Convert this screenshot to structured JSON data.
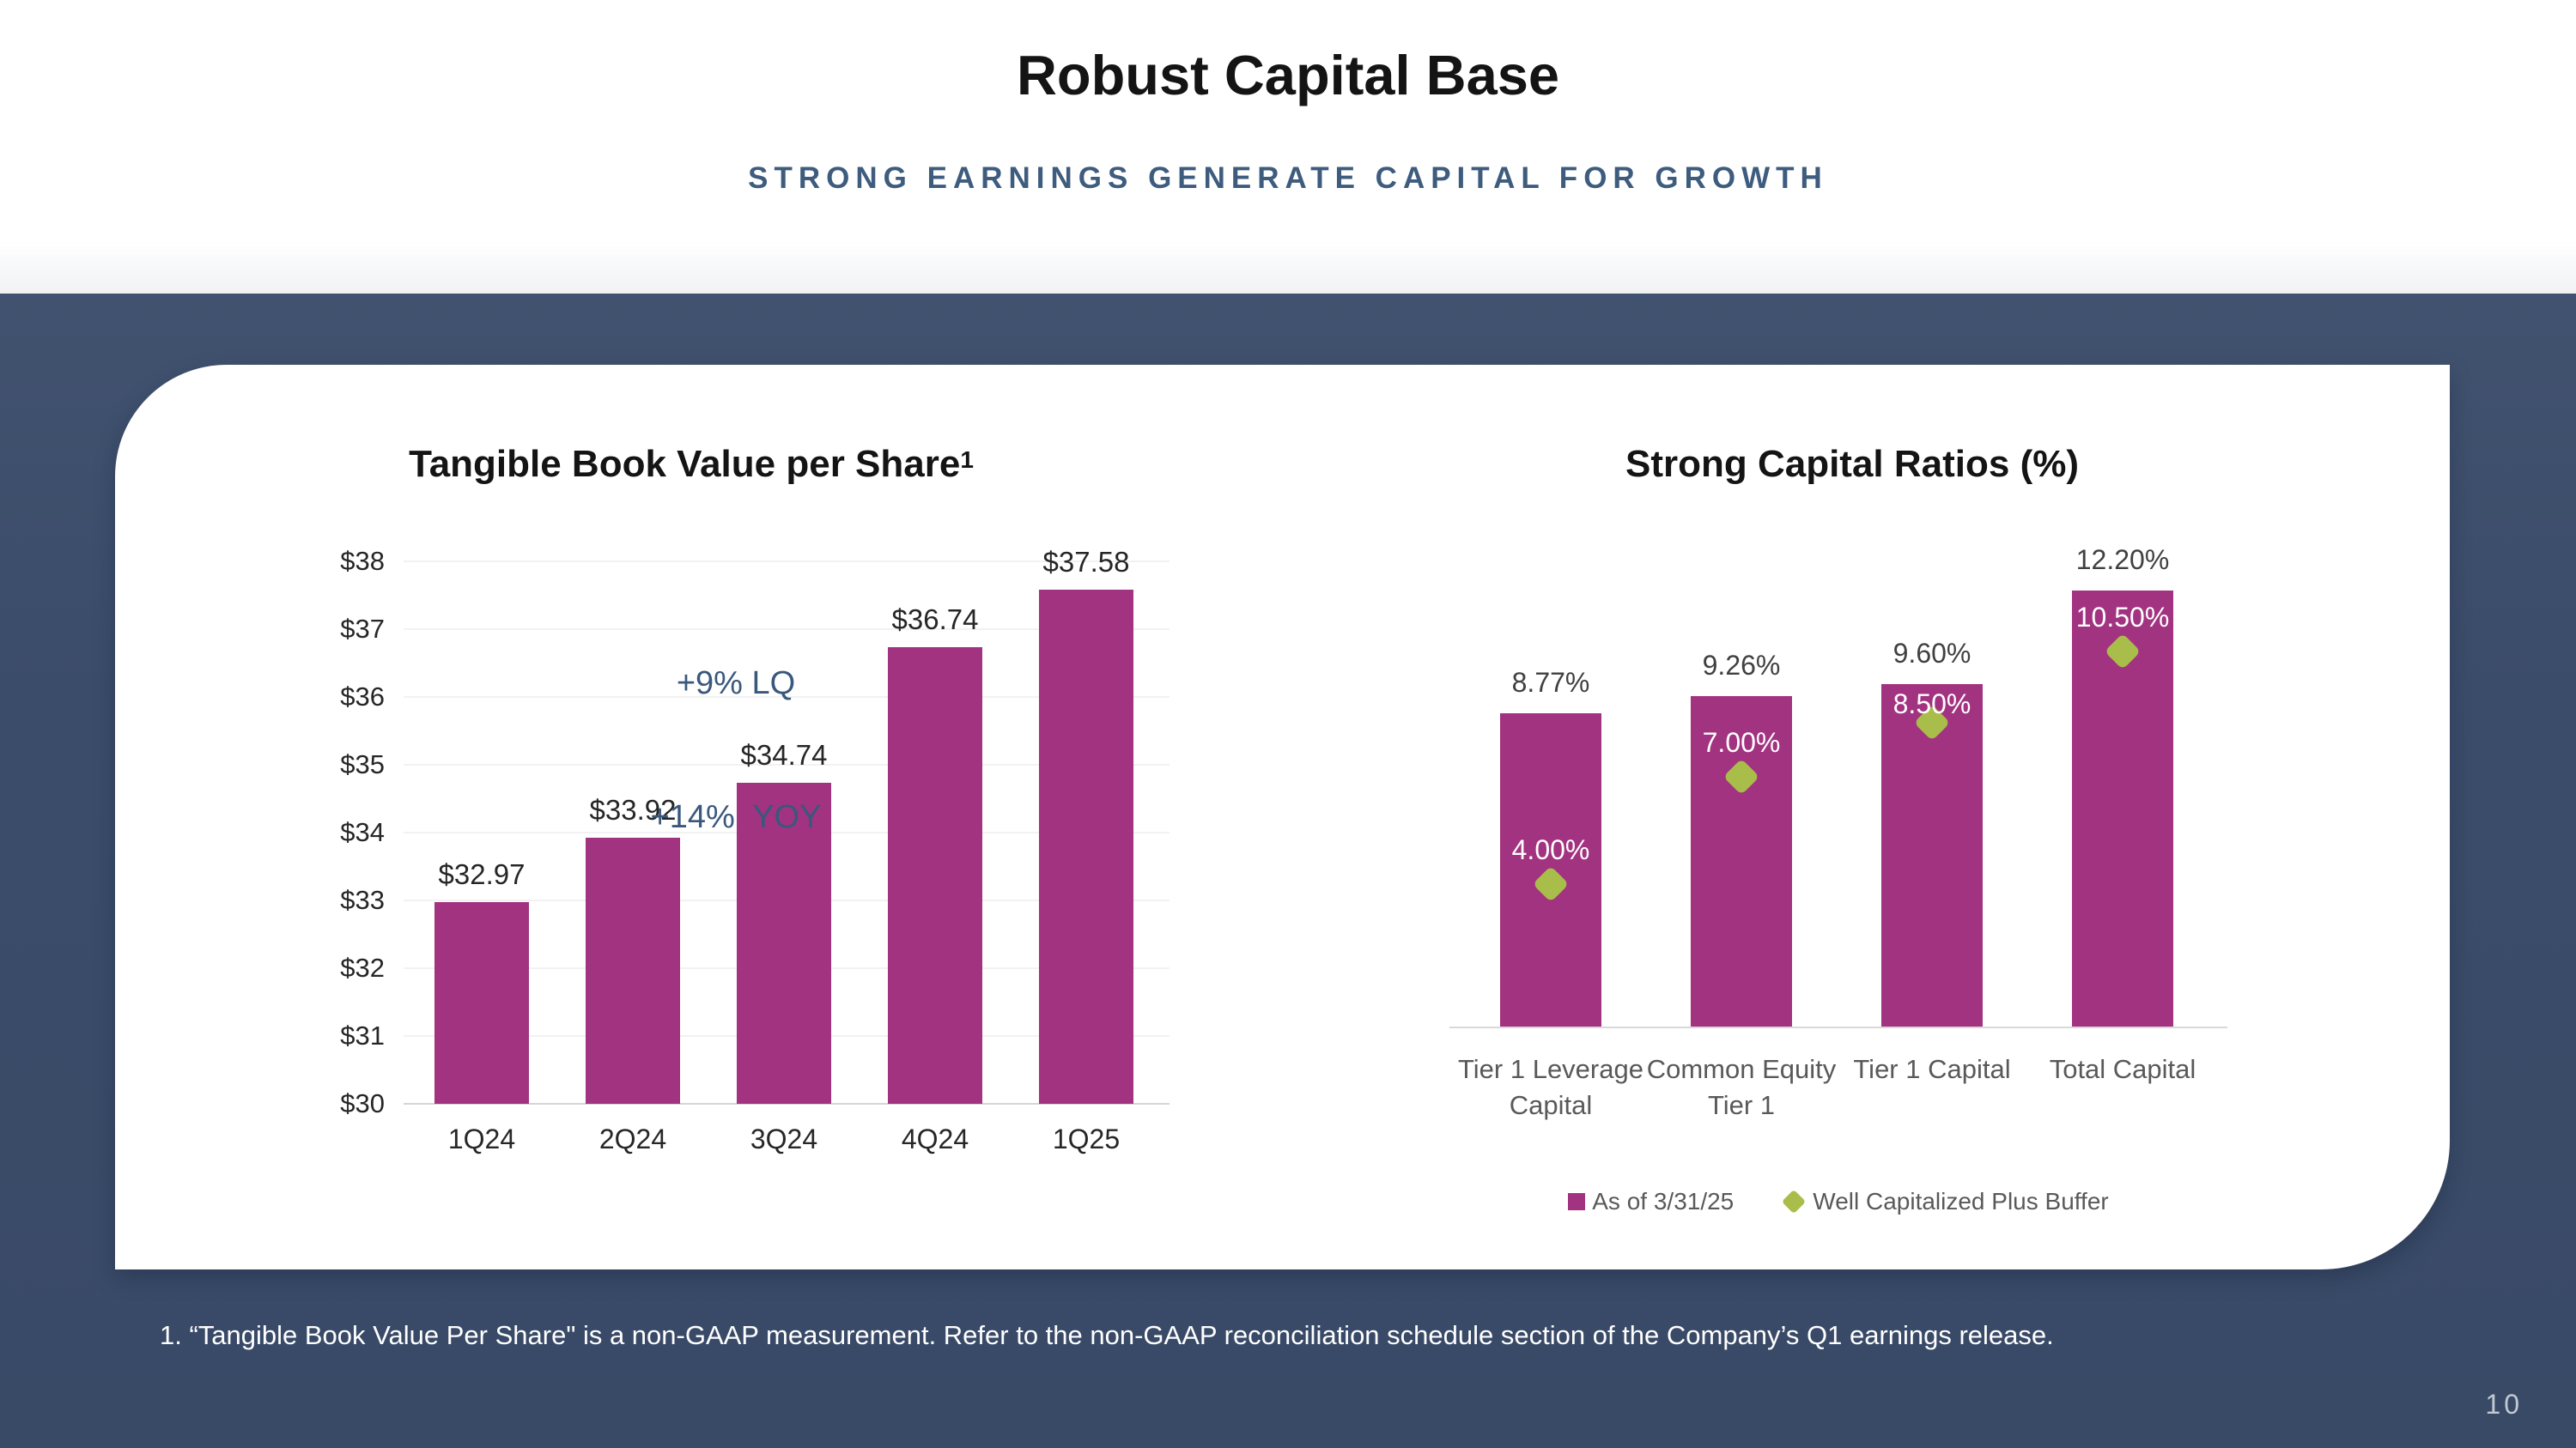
{
  "header": {
    "title": "Robust Capital Base",
    "subtitle": "STRONG EARNINGS GENERATE CAPITAL FOR GROWTH"
  },
  "footnote": "1. “Tangible Book Value Per Share\" is a non-GAAP measurement. Refer to the non-GAAP reconciliation schedule section of the Company’s Q1 earnings release.",
  "page_number": "10",
  "colors": {
    "bar_magenta": "#A23380",
    "diamond_green": "#A9BE4A",
    "band_blue": "#3B4C6A",
    "accent_blue": "#3A587C"
  },
  "chart_data": [
    {
      "type": "bar",
      "title": "Tangible Book Value per Share",
      "title_superscript": "1",
      "categories": [
        "1Q24",
        "2Q24",
        "3Q24",
        "4Q24",
        "1Q25"
      ],
      "values": [
        32.97,
        33.92,
        34.74,
        36.74,
        37.58
      ],
      "value_labels": [
        "$32.97",
        "$33.92",
        "$34.74",
        "$36.74",
        "$37.58"
      ],
      "yticks": [
        "$38",
        "$37",
        "$36",
        "$35",
        "$34",
        "$33",
        "$32",
        "$31",
        "$30"
      ],
      "ylim": [
        30,
        38
      ],
      "grid": true,
      "bar_color": "#A23380",
      "annotation_lines": [
        "+9% LQ",
        "+14%  YOY"
      ]
    },
    {
      "type": "bar",
      "title": "Strong Capital Ratios (%)",
      "categories": [
        "Tier 1 Leverage Capital",
        "Common Equity Tier 1",
        "Tier 1 Capital",
        "Total Capital"
      ],
      "categories_lines": [
        [
          "Tier 1 Leverage",
          "Capital"
        ],
        [
          "Common Equity",
          "Tier 1"
        ],
        [
          "Tier 1 Capital"
        ],
        [
          "Total Capital"
        ]
      ],
      "ylim": [
        0,
        12.2
      ],
      "grid": false,
      "legend_position": "bottom",
      "series": [
        {
          "name": "As of 3/31/25",
          "marker": "bar",
          "color": "#A23380",
          "values": [
            8.77,
            9.26,
            9.6,
            12.2
          ],
          "value_labels": [
            "8.77%",
            "9.26%",
            "9.60%",
            "12.20%"
          ]
        },
        {
          "name": "Well Capitalized Plus Buffer",
          "marker": "diamond",
          "color": "#A9BE4A",
          "values": [
            4.0,
            7.0,
            8.5,
            10.5
          ],
          "value_labels": [
            "4.00%",
            "7.00%",
            "8.50%",
            "10.50%"
          ]
        }
      ]
    }
  ]
}
